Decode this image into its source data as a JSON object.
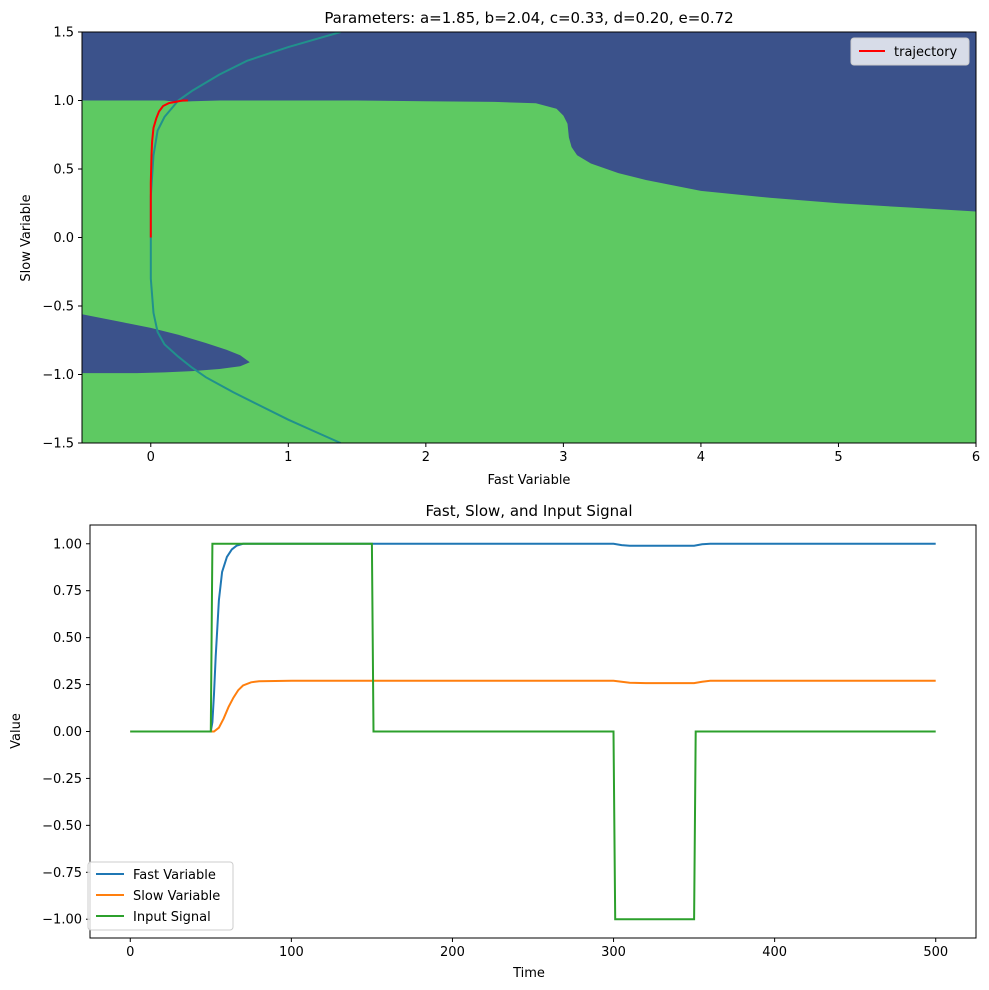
{
  "chart_data": [
    {
      "type": "phase-plane",
      "title": "Parameters: a=1.85, b=2.04, c=0.33, d=0.20, e=0.72",
      "xlabel": "Fast Variable",
      "ylabel": "Slow Variable",
      "xlim": [
        -0.5,
        6
      ],
      "ylim": [
        -1.5,
        1.5
      ],
      "xticks": [
        "0",
        "1",
        "2",
        "3",
        "4",
        "5",
        "6"
      ],
      "yticks": [
        "−1.5",
        "−1.0",
        "−0.5",
        "0.0",
        "0.5",
        "1.0",
        "1.5"
      ],
      "grid": false,
      "legend_position": "top-right",
      "colors": {
        "region_positive": "#5ec962",
        "region_negative": "#3b528b",
        "nullcline": "#21918c",
        "trajectory": "#ff0000"
      },
      "regions": {
        "negative_upper_boundary": {
          "x": [
            -0.5,
            0.0,
            0.05,
            0.1,
            0.15,
            0.2,
            0.3,
            0.5,
            1.0,
            1.5,
            2.0,
            2.5,
            2.8,
            2.95,
            3.0,
            3.03,
            3.04,
            3.06,
            3.1,
            3.2,
            3.4,
            3.6,
            4.0,
            4.5,
            5.0,
            5.5,
            6.0
          ],
          "y": [
            1.0,
            1.0,
            1.0,
            1.0,
            0.995,
            0.99,
            0.995,
            1.0,
            1.0,
            1.0,
            0.995,
            0.99,
            0.98,
            0.94,
            0.89,
            0.83,
            0.73,
            0.66,
            0.6,
            0.54,
            0.47,
            0.42,
            0.34,
            0.29,
            0.25,
            0.22,
            0.19
          ]
        },
        "negative_lower_lobe": {
          "x": [
            -0.5,
            -0.2,
            0.0,
            0.2,
            0.4,
            0.55,
            0.65,
            0.72,
            0.65,
            0.5,
            0.3,
            0.1,
            -0.1,
            -0.3,
            -0.5
          ],
          "y": [
            -0.56,
            -0.62,
            -0.66,
            -0.71,
            -0.77,
            -0.82,
            -0.86,
            -0.91,
            -0.94,
            -0.96,
            -0.975,
            -0.985,
            -0.99,
            -0.99,
            -0.99
          ]
        }
      },
      "series": [
        {
          "name": "",
          "role": "nullcline",
          "x": [
            1.38,
            1.2,
            1.0,
            0.8,
            0.6,
            0.4,
            0.3,
            0.2,
            0.1,
            0.05,
            0.02,
            0.0,
            0.0,
            0.02,
            0.05,
            0.1,
            0.2,
            0.3,
            0.5,
            0.7,
            1.0,
            1.38
          ],
          "y": [
            -1.5,
            -1.42,
            -1.33,
            -1.23,
            -1.13,
            -1.02,
            -0.95,
            -0.87,
            -0.78,
            -0.69,
            -0.55,
            -0.3,
            0.3,
            0.6,
            0.78,
            0.88,
            1.0,
            1.07,
            1.19,
            1.29,
            1.39,
            1.5
          ]
        },
        {
          "name": "trajectory",
          "x": [
            0.0,
            0.0,
            0.005,
            0.01,
            0.02,
            0.04,
            0.06,
            0.09,
            0.13,
            0.18,
            0.23,
            0.27
          ],
          "y": [
            0.0,
            0.4,
            0.6,
            0.7,
            0.8,
            0.87,
            0.92,
            0.96,
            0.98,
            0.99,
            1.0,
            1.0
          ]
        }
      ]
    },
    {
      "type": "line",
      "title": "Fast, Slow, and Input Signal",
      "xlabel": "Time",
      "ylabel": "Value",
      "xlim": [
        -25,
        525
      ],
      "ylim": [
        -1.1,
        1.1
      ],
      "xticks": [
        "0",
        "100",
        "200",
        "300",
        "400",
        "500"
      ],
      "yticks": [
        "−1.00",
        "−0.75",
        "−0.50",
        "−0.25",
        "0.00",
        "0.25",
        "0.50",
        "0.75",
        "1.00"
      ],
      "grid": false,
      "legend_position": "lower-left",
      "series": [
        {
          "name": "Fast Variable",
          "color": "#1f77b4",
          "x": [
            0,
            50,
            51,
            52,
            53,
            54,
            55,
            57,
            60,
            63,
            66,
            70,
            75,
            100,
            150,
            200,
            300,
            305,
            310,
            330,
            350,
            355,
            360,
            400,
            500
          ],
          "y": [
            0,
            0,
            0.05,
            0.2,
            0.4,
            0.55,
            0.7,
            0.85,
            0.93,
            0.97,
            0.99,
            1.0,
            1.0,
            1.0,
            1.0,
            1.0,
            1.0,
            0.993,
            0.99,
            0.99,
            0.99,
            0.997,
            1.0,
            1.0,
            1.0
          ]
        },
        {
          "name": "Slow Variable",
          "color": "#ff7f0e",
          "x": [
            0,
            50,
            52,
            55,
            58,
            61,
            64,
            67,
            70,
            75,
            80,
            100,
            150,
            300,
            305,
            310,
            320,
            350,
            355,
            360,
            400,
            500
          ],
          "y": [
            0,
            0,
            0.0,
            0.02,
            0.07,
            0.13,
            0.18,
            0.22,
            0.245,
            0.262,
            0.268,
            0.27,
            0.27,
            0.27,
            0.265,
            0.26,
            0.258,
            0.258,
            0.265,
            0.27,
            0.27,
            0.27
          ]
        },
        {
          "name": "Input Signal",
          "color": "#2ca02c",
          "x": [
            0,
            50,
            51,
            150,
            151,
            300,
            301,
            350,
            351,
            500
          ],
          "y": [
            0,
            0,
            1,
            1,
            0,
            0,
            -1,
            -1,
            0,
            0
          ]
        }
      ]
    }
  ]
}
